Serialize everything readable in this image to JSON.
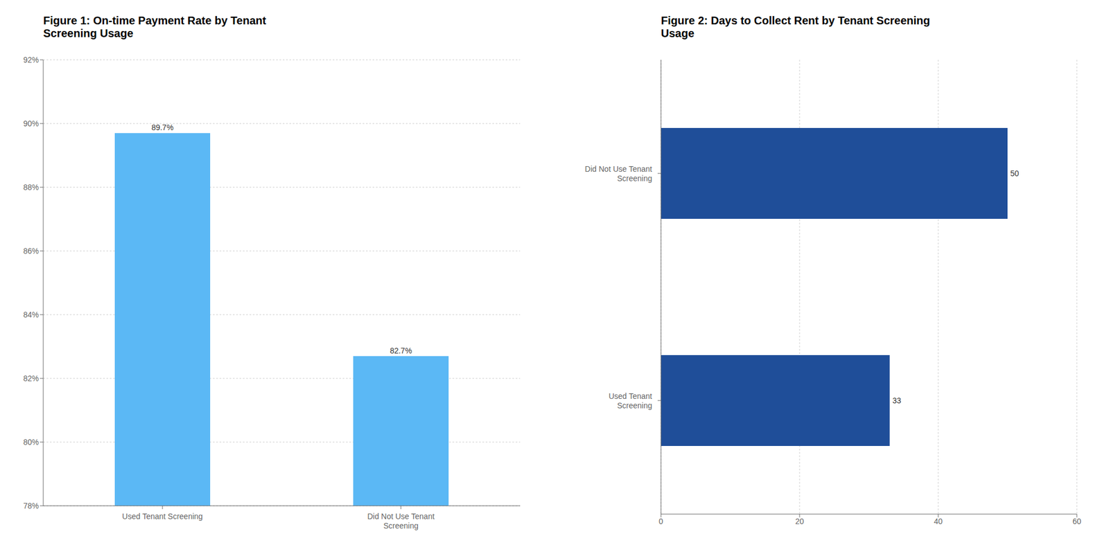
{
  "chart_data": [
    {
      "type": "bar",
      "title": "Figure 1: On-time Payment Rate by Tenant\nScreening Usage",
      "categories": [
        "Used Tenant Screening",
        "Did Not Use Tenant\nScreening"
      ],
      "values": [
        89.7,
        82.7
      ],
      "value_labels": [
        "89.7%",
        "82.7%"
      ],
      "data_labels": true,
      "color": "#5BB8F5",
      "ylim": [
        78,
        92
      ],
      "yticks": [
        {
          "value": 78,
          "label": "78%"
        },
        {
          "value": 80,
          "label": "80%"
        },
        {
          "value": 82,
          "label": "82%"
        },
        {
          "value": 84,
          "label": "84%"
        },
        {
          "value": 86,
          "label": "86%"
        },
        {
          "value": 88,
          "label": "88%"
        },
        {
          "value": 90,
          "label": "90%"
        },
        {
          "value": 92,
          "label": "92%"
        }
      ],
      "grid": true
    },
    {
      "type": "bar",
      "orientation": "horizontal",
      "title": "Figure 2: Days to Collect Rent by Tenant Screening\nUsage",
      "categories": [
        "Did Not Use Tenant\nScreening",
        "Used Tenant\nScreening"
      ],
      "values": [
        50,
        33
      ],
      "data_labels": true,
      "color": "#1F4E99",
      "xlim": [
        0,
        60
      ],
      "xticks": [
        0,
        20,
        40,
        60
      ],
      "grid": true
    }
  ]
}
